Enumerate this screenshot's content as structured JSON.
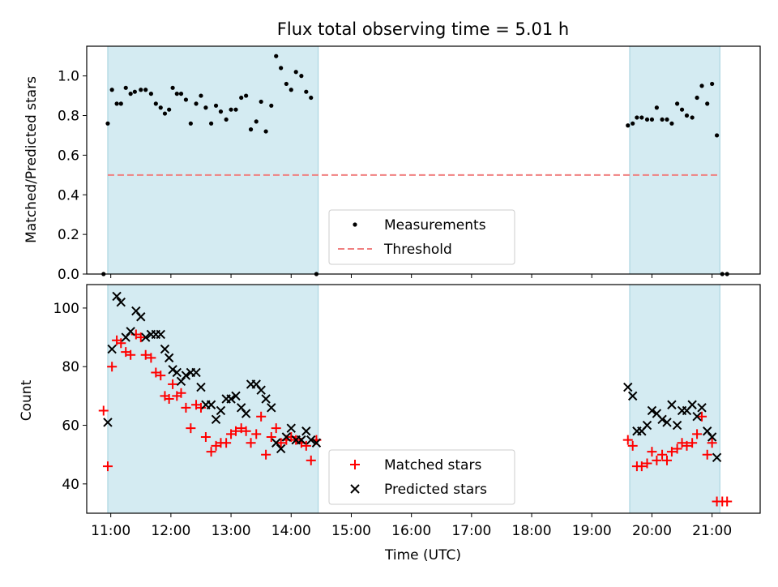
{
  "title": "Flux total observing time = 5.01 h",
  "colors": {
    "observing_window": "#add8e6",
    "measurement": "#000000",
    "threshold": "#f08080",
    "matched": "#ff0000",
    "predicted": "#000000"
  },
  "chart_data": [
    {
      "type": "scatter",
      "panel": "top",
      "ylabel": "Matched/Predicted stars",
      "xlim": [
        10.6,
        21.8
      ],
      "ylim": [
        0,
        1.15
      ],
      "yticks": [
        "0.0",
        "0.2",
        "0.4",
        "0.6",
        "0.8",
        "1.0"
      ],
      "legend_position": "lower-center",
      "observing_windows": [
        [
          10.95,
          14.45
        ],
        [
          19.63,
          21.13
        ]
      ],
      "threshold": {
        "name": "Threshold",
        "y": 0.5,
        "x_range": [
          10.95,
          21.13
        ]
      },
      "series": [
        {
          "name": "Measurements",
          "marker": "dot",
          "x": [
            10.88,
            10.95,
            11.02,
            11.1,
            11.17,
            11.25,
            11.33,
            11.4,
            11.5,
            11.58,
            11.67,
            11.75,
            11.83,
            11.9,
            11.97,
            12.03,
            12.1,
            12.17,
            12.25,
            12.33,
            12.42,
            12.5,
            12.58,
            12.67,
            12.75,
            12.83,
            12.92,
            13.0,
            13.08,
            13.17,
            13.25,
            13.33,
            13.42,
            13.5,
            13.58,
            13.67,
            13.75,
            13.83,
            13.92,
            14.0,
            14.08,
            14.17,
            14.25,
            14.33,
            14.42,
            19.6,
            19.68,
            19.75,
            19.83,
            19.92,
            20.0,
            20.08,
            20.17,
            20.25,
            20.33,
            20.42,
            20.5,
            20.58,
            20.67,
            20.75,
            20.83,
            20.92,
            21.0,
            21.08,
            21.17,
            21.25
          ],
          "y": [
            0.0,
            0.76,
            0.93,
            0.86,
            0.86,
            0.94,
            0.91,
            0.92,
            0.93,
            0.93,
            0.91,
            0.86,
            0.84,
            0.81,
            0.83,
            0.94,
            0.91,
            0.91,
            0.88,
            0.76,
            0.86,
            0.9,
            0.84,
            0.76,
            0.85,
            0.82,
            0.78,
            0.83,
            0.83,
            0.89,
            0.9,
            0.73,
            0.77,
            0.87,
            0.72,
            0.85,
            1.1,
            1.04,
            0.96,
            0.93,
            1.02,
            1.0,
            0.92,
            0.89,
            0.0,
            0.75,
            0.76,
            0.79,
            0.79,
            0.78,
            0.78,
            0.84,
            0.78,
            0.78,
            0.76,
            0.86,
            0.83,
            0.8,
            0.79,
            0.89,
            0.95,
            0.86,
            0.96,
            0.7,
            0.0,
            0.0
          ]
        }
      ]
    },
    {
      "type": "scatter",
      "panel": "bottom",
      "ylabel": "Count",
      "xlabel": "Time (UTC)",
      "xlim": [
        10.6,
        21.8
      ],
      "ylim": [
        30,
        108
      ],
      "yticks": [
        "40",
        "60",
        "80",
        "100"
      ],
      "xticks": [
        "11:00",
        "12:00",
        "13:00",
        "14:00",
        "15:00",
        "16:00",
        "17:00",
        "18:00",
        "19:00",
        "20:00",
        "21:00"
      ],
      "legend_position": "lower-center",
      "observing_windows": [
        [
          10.95,
          14.45
        ],
        [
          19.63,
          21.13
        ]
      ],
      "series": [
        {
          "name": "Matched stars",
          "marker": "plus",
          "x": [
            10.88,
            10.95,
            11.02,
            11.1,
            11.17,
            11.25,
            11.33,
            11.42,
            11.5,
            11.58,
            11.67,
            11.75,
            11.83,
            11.9,
            11.97,
            12.03,
            12.1,
            12.17,
            12.25,
            12.33,
            12.42,
            12.5,
            12.58,
            12.67,
            12.75,
            12.83,
            12.92,
            13.0,
            13.08,
            13.17,
            13.25,
            13.33,
            13.42,
            13.5,
            13.58,
            13.67,
            13.75,
            13.83,
            13.92,
            14.0,
            14.08,
            14.17,
            14.25,
            14.33,
            14.42,
            19.6,
            19.68,
            19.75,
            19.83,
            19.92,
            20.0,
            20.08,
            20.17,
            20.25,
            20.33,
            20.42,
            20.5,
            20.58,
            20.67,
            20.75,
            20.83,
            20.92,
            21.0,
            21.08,
            21.17,
            21.25
          ],
          "y": [
            65,
            46,
            80,
            89,
            88,
            85,
            84,
            91,
            90,
            84,
            83,
            78,
            77,
            70,
            69,
            74,
            70,
            71,
            66,
            59,
            67,
            66,
            56,
            51,
            53,
            54,
            54,
            57,
            58,
            59,
            58,
            54,
            57,
            63,
            50,
            56,
            59,
            54,
            55,
            56,
            55,
            54,
            53,
            48,
            55,
            55,
            53,
            46,
            46,
            47,
            51,
            48,
            50,
            48,
            51,
            52,
            54,
            53,
            54,
            57,
            63,
            50,
            54,
            34,
            34,
            34
          ]
        },
        {
          "name": "Predicted stars",
          "marker": "x",
          "x": [
            10.95,
            11.02,
            11.1,
            11.17,
            11.25,
            11.33,
            11.42,
            11.5,
            11.58,
            11.67,
            11.75,
            11.83,
            11.9,
            11.97,
            12.03,
            12.1,
            12.17,
            12.25,
            12.33,
            12.42,
            12.5,
            12.58,
            12.67,
            12.75,
            12.83,
            12.92,
            13.0,
            13.08,
            13.17,
            13.25,
            13.33,
            13.42,
            13.5,
            13.58,
            13.67,
            13.75,
            13.83,
            13.92,
            14.0,
            14.08,
            14.17,
            14.25,
            14.33,
            14.42,
            19.6,
            19.68,
            19.75,
            19.83,
            19.92,
            20.0,
            20.08,
            20.17,
            20.25,
            20.33,
            20.42,
            20.5,
            20.58,
            20.67,
            20.75,
            20.83,
            20.92,
            21.0,
            21.08
          ],
          "y": [
            61,
            86,
            104,
            102,
            90,
            92,
            99,
            97,
            90,
            91,
            91,
            91,
            86,
            83,
            79,
            78,
            75,
            77,
            78,
            78,
            73,
            67,
            67,
            62,
            65,
            69,
            69,
            70,
            66,
            64,
            74,
            74,
            72,
            69,
            66,
            54,
            52,
            56,
            59,
            55,
            55,
            58,
            55,
            54,
            73,
            70,
            58,
            58,
            60,
            65,
            64,
            62,
            61,
            67,
            60,
            65,
            65,
            67,
            63,
            66,
            58,
            56,
            49
          ]
        }
      ]
    }
  ]
}
